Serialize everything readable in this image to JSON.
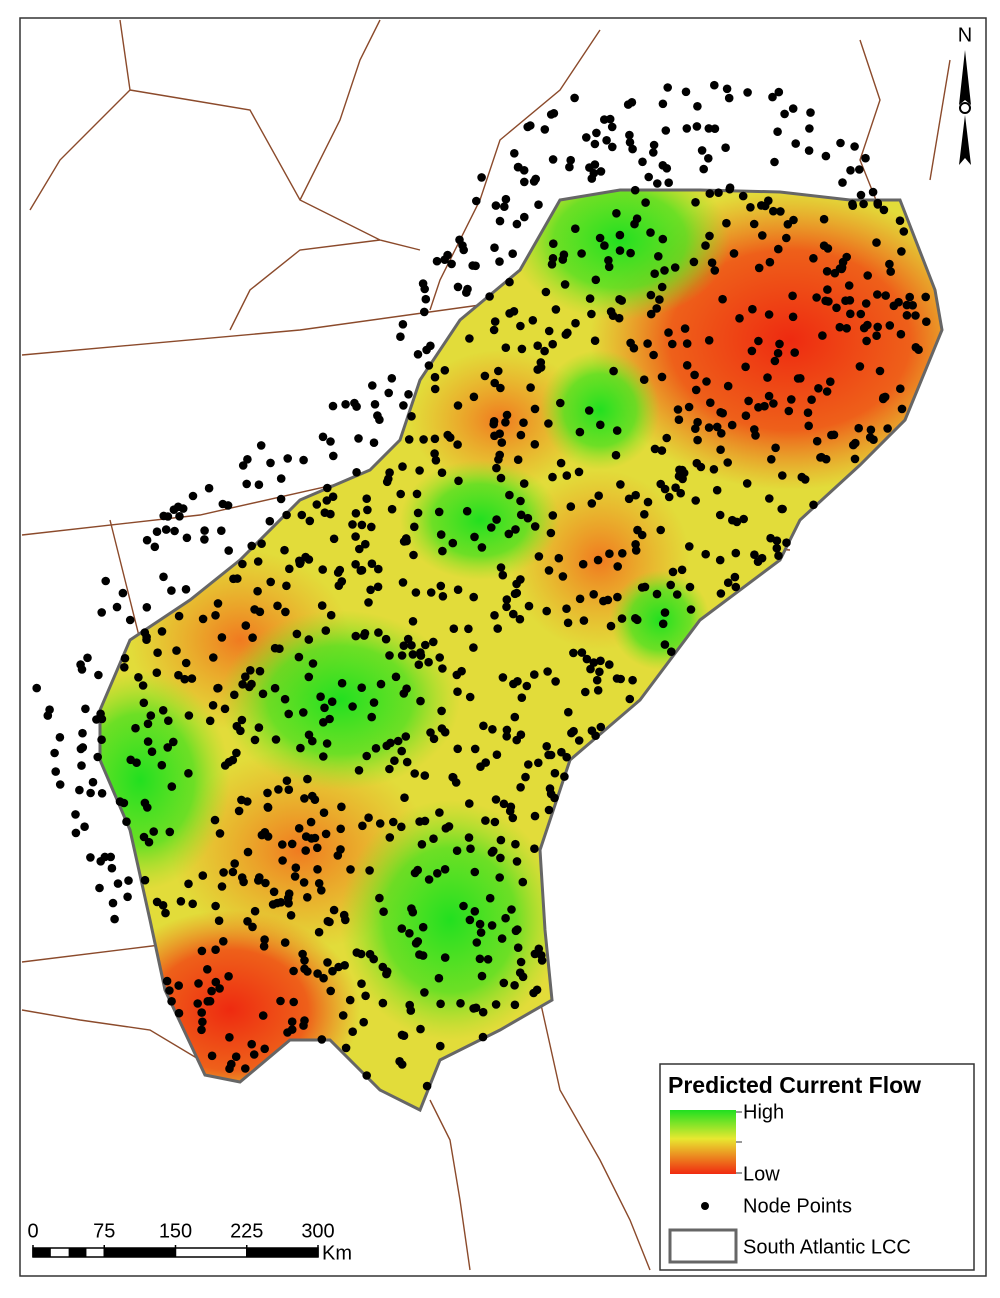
{
  "title": "Predicted Current Flow",
  "legend": {
    "high": "High",
    "low": "Low",
    "node_points": "Node Points",
    "region": "South Atlantic LCC"
  },
  "scale_bar": {
    "ticks": [
      0,
      75,
      150,
      225,
      300
    ],
    "unit": "Km"
  },
  "north": "N"
}
